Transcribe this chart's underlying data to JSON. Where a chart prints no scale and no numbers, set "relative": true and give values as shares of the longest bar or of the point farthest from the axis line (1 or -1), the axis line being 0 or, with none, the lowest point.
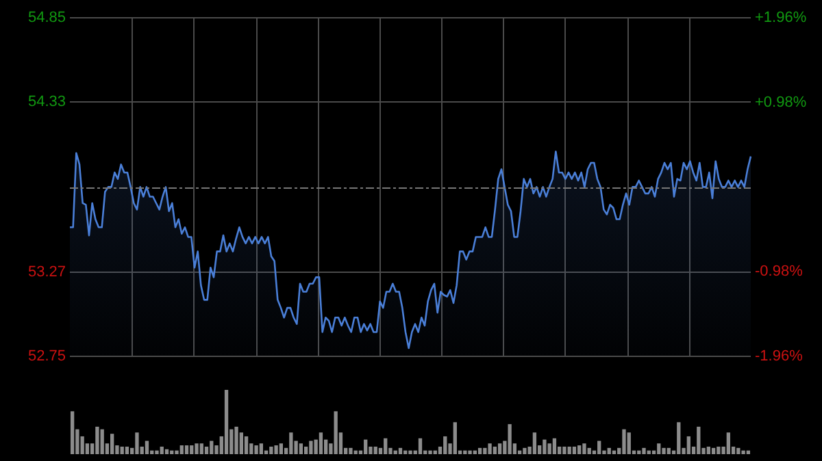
{
  "chart_data": [
    {
      "type": "area",
      "color": "#4a7fd8",
      "categories": [
        null,
        null,
        null,
        null,
        null,
        null,
        null,
        null,
        null,
        null,
        null,
        null,
        null,
        null,
        null,
        null,
        null,
        null,
        null,
        null,
        null,
        null,
        null,
        null,
        null,
        null,
        null,
        null,
        null,
        null,
        null,
        null,
        null,
        null,
        null,
        null,
        null,
        null,
        null,
        null,
        null,
        null,
        null,
        null,
        null,
        null,
        null,
        null,
        null,
        null,
        null,
        null,
        null,
        null,
        null,
        null,
        null,
        null,
        null,
        null,
        null,
        null,
        null,
        null,
        null,
        null,
        null,
        null,
        null,
        null,
        null,
        null,
        null,
        null,
        null,
        null,
        null,
        null,
        null,
        null,
        null,
        null,
        null,
        null,
        null,
        null,
        null,
        null,
        null,
        null,
        null,
        null,
        null,
        null,
        null,
        null,
        null,
        null,
        null,
        null,
        null,
        null,
        null,
        null,
        null,
        null,
        null,
        null,
        null,
        null,
        null,
        null,
        null,
        null,
        null,
        null,
        null,
        null,
        null,
        null,
        null,
        null,
        null,
        null,
        null,
        null,
        null,
        null,
        null,
        null,
        null,
        null,
        null,
        null,
        null,
        null,
        null,
        null,
        null,
        null,
        null,
        null,
        null,
        null,
        null,
        null,
        null,
        null,
        null,
        null,
        null,
        null,
        null,
        null,
        null,
        null,
        null,
        null,
        null,
        null,
        null,
        null,
        null,
        null,
        null,
        null,
        null,
        null,
        null,
        null,
        null,
        null,
        null,
        null,
        null,
        null,
        null,
        null,
        null,
        null,
        null,
        null,
        null,
        null,
        null,
        null,
        null,
        null,
        null,
        null,
        null,
        null,
        null,
        null,
        null,
        null,
        null,
        null,
        null,
        null,
        null,
        null,
        null,
        null,
        null,
        null,
        null,
        null,
        null,
        null,
        null,
        null,
        null,
        null
      ],
      "values": [
        53.55,
        53.55,
        54.01,
        53.94,
        53.7,
        53.69,
        53.5,
        53.7,
        53.6,
        53.55,
        53.55,
        53.77,
        53.8,
        53.8,
        53.89,
        53.85,
        53.94,
        53.89,
        53.89,
        53.8,
        53.7,
        53.66,
        53.8,
        53.74,
        53.8,
        53.74,
        53.74,
        53.7,
        53.66,
        53.74,
        53.8,
        53.65,
        53.7,
        53.55,
        53.6,
        53.51,
        53.55,
        53.49,
        53.49,
        53.3,
        53.4,
        53.19,
        53.1,
        53.1,
        53.3,
        53.24,
        53.4,
        53.4,
        53.5,
        53.4,
        53.45,
        53.4,
        53.48,
        53.55,
        53.49,
        53.45,
        53.49,
        53.45,
        53.49,
        53.45,
        53.49,
        53.45,
        53.49,
        53.37,
        53.34,
        53.1,
        53.05,
        52.99,
        53.05,
        53.05,
        52.99,
        52.95,
        53.2,
        53.15,
        53.15,
        53.2,
        53.2,
        53.24,
        53.24,
        52.9,
        52.99,
        52.97,
        52.9,
        52.99,
        52.99,
        52.94,
        52.99,
        52.94,
        52.9,
        52.99,
        52.99,
        52.9,
        52.95,
        52.91,
        52.95,
        52.9,
        52.9,
        53.09,
        53.05,
        53.15,
        53.15,
        53.2,
        53.15,
        53.15,
        53.05,
        52.9,
        52.8,
        52.9,
        52.95,
        52.9,
        52.99,
        52.94,
        53.09,
        53.16,
        53.2,
        53.02,
        53.15,
        53.13,
        53.12,
        53.16,
        53.08,
        53.19,
        53.4,
        53.4,
        53.35,
        53.4,
        53.4,
        53.49,
        53.49,
        53.49,
        53.55,
        53.49,
        53.49,
        53.66,
        53.85,
        53.91,
        53.8,
        53.69,
        53.65,
        53.49,
        53.49,
        53.65,
        53.85,
        53.8,
        53.85,
        53.76,
        53.8,
        53.74,
        53.8,
        53.74,
        53.8,
        53.85,
        54.02,
        53.89,
        53.89,
        53.85,
        53.89,
        53.85,
        53.89,
        53.84,
        53.89,
        53.8,
        53.91,
        53.95,
        53.95,
        53.85,
        53.8,
        53.66,
        53.63,
        53.69,
        53.67,
        53.6,
        53.6,
        53.69,
        53.76,
        53.69,
        53.8,
        53.8,
        53.84,
        53.8,
        53.76,
        53.76,
        53.8,
        53.74,
        53.85,
        53.89,
        53.95,
        53.91,
        53.95,
        53.74,
        53.85,
        53.84,
        53.95,
        53.91,
        53.96,
        53.89,
        53.84,
        53.95,
        53.8,
        53.8,
        53.89,
        53.73,
        53.96,
        53.85,
        53.8,
        53.8,
        53.84,
        53.8,
        53.84,
        53.8,
        53.84,
        53.8,
        53.91,
        53.99
      ],
      "ylim": [
        52.75,
        54.85
      ],
      "yticks": [
        52.75,
        53.27,
        54.33,
        54.85
      ],
      "y2lim": [
        -1.96,
        1.96
      ],
      "y2ticks": [
        {
          "value": -1.96,
          "label": "-1.96%"
        },
        {
          "value": -0.98,
          "label": "-0.98%"
        },
        {
          "value": 0.98,
          "label": "+0.98%"
        },
        {
          "value": 1.96,
          "label": "+1.96%"
        }
      ],
      "ref_lines": [
        {
          "axis": "y",
          "value": 53.8
        }
      ],
      "grid": true,
      "legend": false
    },
    {
      "type": "bar",
      "relative": true,
      "color": "#8c8c8c",
      "categories": [
        null,
        null,
        null,
        null,
        null,
        null,
        null,
        null,
        null,
        null,
        null,
        null,
        null,
        null,
        null,
        null,
        null,
        null,
        null,
        null,
        null,
        null,
        null,
        null,
        null,
        null,
        null,
        null,
        null,
        null,
        null,
        null,
        null,
        null,
        null,
        null,
        null,
        null,
        null,
        null,
        null,
        null,
        null,
        null,
        null,
        null,
        null,
        null,
        null,
        null,
        null,
        null,
        null,
        null,
        null,
        null,
        null,
        null,
        null,
        null,
        null,
        null,
        null,
        null,
        null,
        null,
        null,
        null,
        null,
        null,
        null,
        null,
        null,
        null,
        null,
        null,
        null,
        null,
        null,
        null,
        null,
        null,
        null,
        null,
        null,
        null,
        null,
        null,
        null,
        null,
        null,
        null,
        null,
        null,
        null,
        null,
        null,
        null,
        null,
        null,
        null,
        null,
        null,
        null,
        null,
        null,
        null,
        null,
        null,
        null,
        null,
        null,
        null,
        null,
        null,
        null,
        null,
        null,
        null,
        null,
        null,
        null,
        null,
        null,
        null,
        null,
        null,
        null,
        null,
        null,
        null,
        null,
        null,
        null,
        null,
        null,
        null
      ],
      "values": [
        0.66,
        0.38,
        0.27,
        0.16,
        0.16,
        0.42,
        0.38,
        0.16,
        0.31,
        0.13,
        0.11,
        0.11,
        0.09,
        0.33,
        0.11,
        0.2,
        0.05,
        0.05,
        0.11,
        0.07,
        0.05,
        0.05,
        0.13,
        0.13,
        0.13,
        0.16,
        0.16,
        0.11,
        0.2,
        0.13,
        0.27,
        1,
        0.38,
        0.42,
        0.33,
        0.27,
        0.16,
        0.13,
        0.16,
        0.05,
        0.11,
        0.13,
        0.16,
        0.09,
        0.33,
        0.2,
        0.16,
        0.11,
        0.2,
        0.22,
        0.33,
        0.22,
        0.16,
        0.66,
        0.33,
        0.09,
        0.09,
        0.05,
        0.05,
        0.22,
        0.11,
        0.11,
        0.09,
        0.24,
        0.09,
        0.05,
        0.09,
        0.05,
        0.05,
        0.05,
        0.24,
        0.05,
        0.05,
        0.05,
        0.11,
        0.27,
        0.16,
        0.49,
        0.05,
        0.05,
        0.05,
        0.05,
        0.09,
        0.09,
        0.16,
        0.11,
        0.16,
        0.2,
        0.46,
        0.16,
        0.05,
        0.09,
        0.11,
        0.33,
        0.13,
        0.22,
        0.16,
        0.24,
        0.11,
        0.11,
        0.11,
        0.11,
        0.13,
        0.16,
        0.09,
        0.05,
        0.2,
        0.05,
        0.09,
        0.05,
        0.09,
        0.38,
        0.33,
        0.05,
        0.05,
        0.09,
        0.05,
        0.05,
        0.16,
        0.09,
        0.09,
        0.05,
        0.49,
        0.09,
        0.27,
        0.11,
        0.42,
        0.09,
        0.11,
        0.09,
        0.11,
        0.11,
        0.33,
        0.11,
        0.09,
        0.05,
        0.05
      ],
      "legend": false
    }
  ]
}
